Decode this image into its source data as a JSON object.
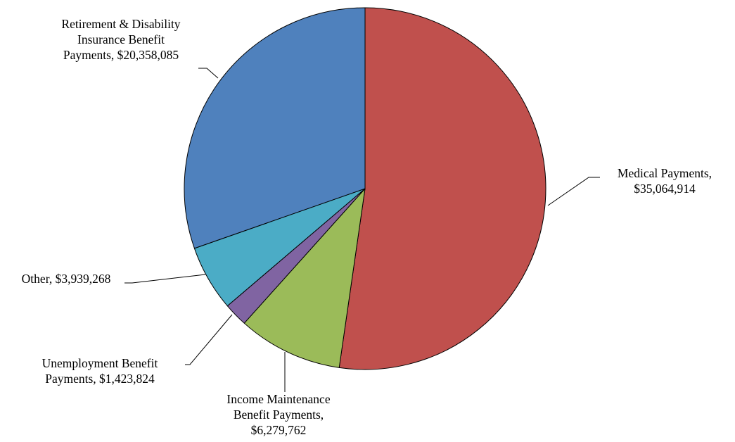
{
  "chart_data": {
    "type": "pie",
    "title": "",
    "slices": [
      {
        "name": "Medical Payments",
        "value": 35064914,
        "value_label": "$35,064,914",
        "color": "#c0504d",
        "label_lines": [
          "Medical Payments,",
          "$35,064,914"
        ]
      },
      {
        "name": "Income Maintenance Benefit Payments",
        "value": 6279762,
        "value_label": "$6,279,762",
        "color": "#9bbb59",
        "label_lines": [
          "Income Maintenance",
          "Benefit Payments,",
          "$6,279,762"
        ]
      },
      {
        "name": "Unemployment Benefit Payments",
        "value": 1423824,
        "value_label": "$1,423,824",
        "color": "#8064a2",
        "label_lines": [
          "Unemployment Benefit",
          "Payments, $1,423,824"
        ]
      },
      {
        "name": "Other",
        "value": 3939268,
        "value_label": "$3,939,268",
        "color": "#4bacc6",
        "label_lines": [
          "Other, $3,939,268"
        ]
      },
      {
        "name": "Retirement & Disability Insurance Benefit Payments",
        "value": 20358085,
        "value_label": "$20,358,085",
        "color": "#4f81bd",
        "label_lines": [
          "Retirement & Disability",
          "Insurance Benefit",
          "Payments, $20,358,085"
        ]
      }
    ],
    "start_position": "top",
    "direction": "clockwise",
    "legend": "none",
    "data_labels": "outside with leader lines"
  }
}
